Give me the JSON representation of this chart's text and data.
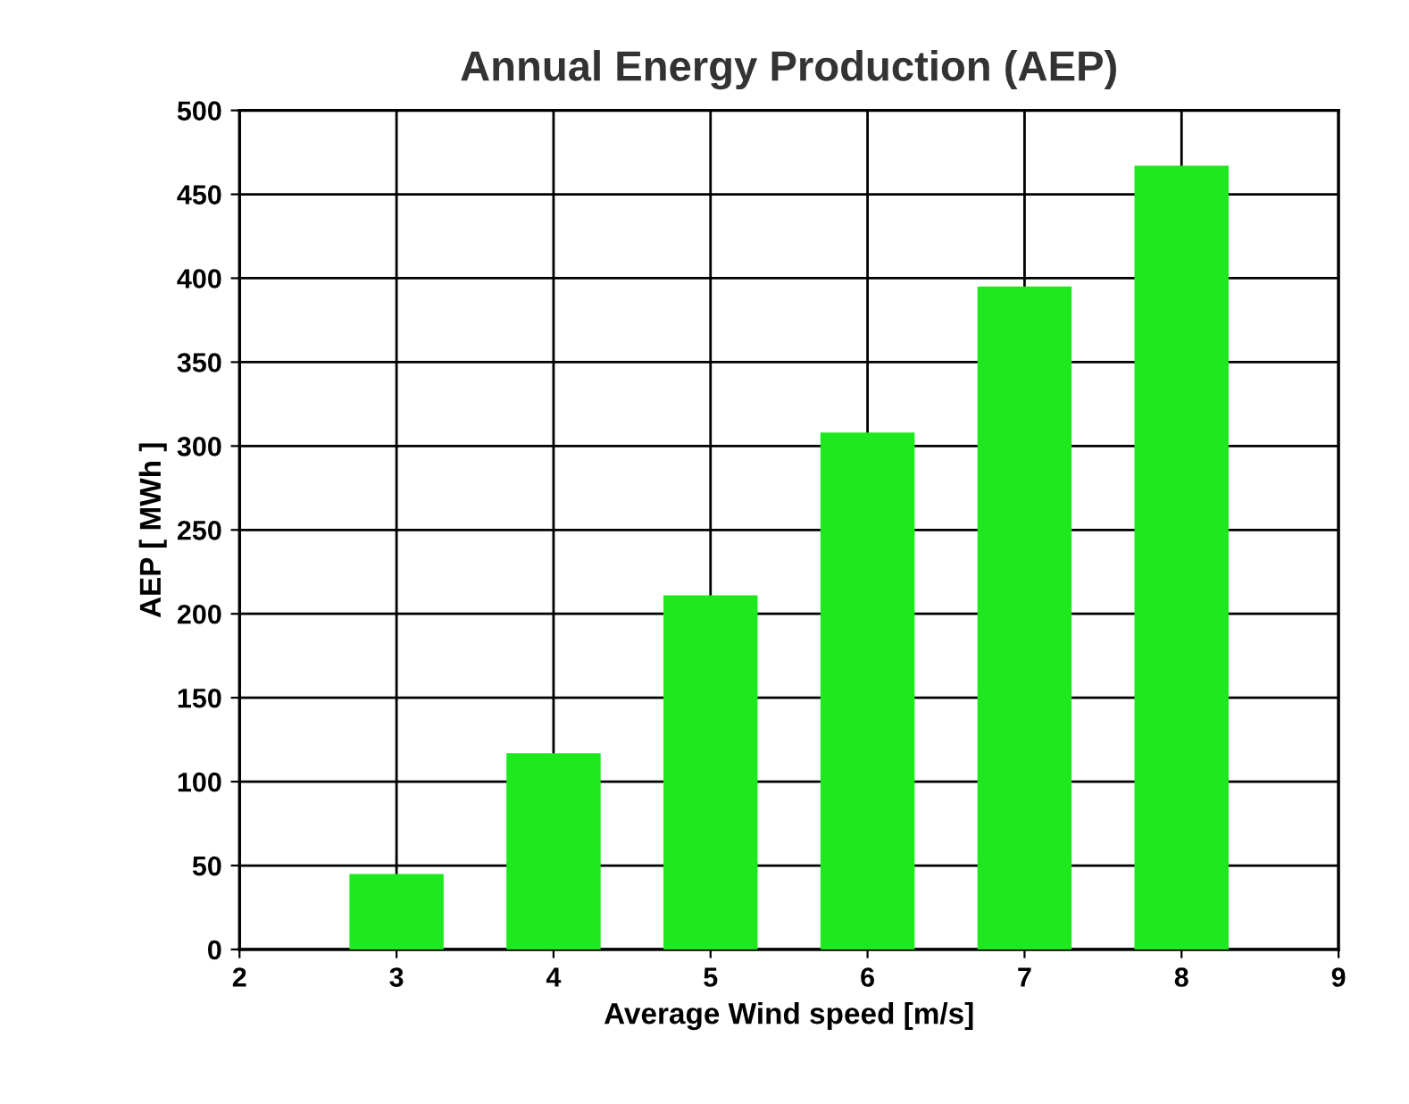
{
  "chart_data": {
    "type": "bar",
    "title": "Annual Energy Production (AEP)",
    "xlabel": "Average Wind speed [m/s]",
    "ylabel": "AEP [ MWh ]",
    "x": [
      3,
      4,
      5,
      6,
      7,
      8
    ],
    "values": [
      45,
      117,
      211,
      308,
      395,
      467
    ],
    "color": "#1ee81e",
    "xlim": [
      2,
      9
    ],
    "xticks": [
      2,
      3,
      4,
      5,
      6,
      7,
      8,
      9
    ],
    "ylim": [
      0,
      500
    ],
    "yticks": [
      0,
      50,
      100,
      150,
      200,
      250,
      300,
      350,
      400,
      450,
      500
    ],
    "grid": true
  }
}
